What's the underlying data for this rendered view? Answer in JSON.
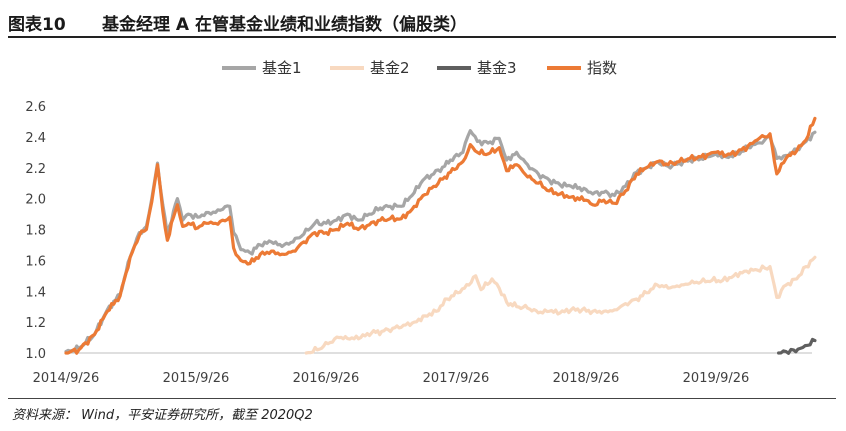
{
  "figure": {
    "number": "图表10",
    "title": "基金经理 A 在管基金业绩和业绩指数（偏股类）",
    "source": "资料来源： Wind，平安证券研究所，截至 2020Q2"
  },
  "chart_data": {
    "type": "line",
    "x_tick_labels": [
      "2014/9/26",
      "2015/9/26",
      "2016/9/26",
      "2017/9/26",
      "2018/9/26",
      "2019/9/26"
    ],
    "ylim": [
      1.0,
      2.6
    ],
    "y_ticks": [
      "1.0",
      "1.2",
      "1.4",
      "1.6",
      "1.8",
      "2.0",
      "2.2",
      "2.4",
      "2.6"
    ],
    "grid": false,
    "legend_position": "top-center",
    "series": [
      {
        "name": "基金1",
        "color": "#a6a6a6",
        "points": [
          [
            "2014-09-26",
            1.01
          ],
          [
            "2014-11-01",
            1.03
          ],
          [
            "2014-12-15",
            1.12
          ],
          [
            "2015-01-20",
            1.28
          ],
          [
            "2015-02-25",
            1.38
          ],
          [
            "2015-03-25",
            1.62
          ],
          [
            "2015-04-20",
            1.78
          ],
          [
            "2015-05-10",
            1.82
          ],
          [
            "2015-05-25",
            2.0
          ],
          [
            "2015-06-10",
            2.23
          ],
          [
            "2015-06-25",
            1.96
          ],
          [
            "2015-07-08",
            1.76
          ],
          [
            "2015-07-25",
            1.92
          ],
          [
            "2015-08-05",
            2.0
          ],
          [
            "2015-08-20",
            1.86
          ],
          [
            "2015-09-05",
            1.9
          ],
          [
            "2015-10-01",
            1.88
          ],
          [
            "2015-10-25",
            1.91
          ],
          [
            "2015-11-20",
            1.91
          ],
          [
            "2015-12-10",
            1.93
          ],
          [
            "2015-12-30",
            1.95
          ],
          [
            "2016-01-10",
            1.78
          ],
          [
            "2016-01-30",
            1.67
          ],
          [
            "2016-02-25",
            1.65
          ],
          [
            "2016-03-25",
            1.7
          ],
          [
            "2016-04-25",
            1.72
          ],
          [
            "2016-05-25",
            1.69
          ],
          [
            "2016-06-25",
            1.72
          ],
          [
            "2016-07-25",
            1.77
          ],
          [
            "2016-08-25",
            1.84
          ],
          [
            "2016-09-26",
            1.84
          ],
          [
            "2016-10-25",
            1.86
          ],
          [
            "2016-11-25",
            1.9
          ],
          [
            "2016-12-25",
            1.86
          ],
          [
            "2017-01-25",
            1.9
          ],
          [
            "2017-02-25",
            1.94
          ],
          [
            "2017-03-25",
            1.95
          ],
          [
            "2017-04-25",
            1.95
          ],
          [
            "2017-05-25",
            2.02
          ],
          [
            "2017-06-25",
            2.12
          ],
          [
            "2017-07-25",
            2.16
          ],
          [
            "2017-08-25",
            2.21
          ],
          [
            "2017-09-10",
            2.25
          ],
          [
            "2017-10-15",
            2.3
          ],
          [
            "2017-11-05",
            2.44
          ],
          [
            "2017-11-25",
            2.37
          ],
          [
            "2017-12-25",
            2.36
          ],
          [
            "2018-01-25",
            2.39
          ],
          [
            "2018-02-15",
            2.25
          ],
          [
            "2018-03-15",
            2.3
          ],
          [
            "2018-04-15",
            2.22
          ],
          [
            "2018-05-15",
            2.16
          ],
          [
            "2018-06-15",
            2.12
          ],
          [
            "2018-07-15",
            2.09
          ],
          [
            "2018-08-15",
            2.08
          ],
          [
            "2018-09-26",
            2.06
          ],
          [
            "2018-10-15",
            2.03
          ],
          [
            "2018-11-15",
            2.04
          ],
          [
            "2018-12-15",
            2.02
          ],
          [
            "2019-01-15",
            2.08
          ],
          [
            "2019-02-15",
            2.17
          ],
          [
            "2019-03-15",
            2.2
          ],
          [
            "2019-04-15",
            2.24
          ],
          [
            "2019-05-15",
            2.21
          ],
          [
            "2019-06-15",
            2.23
          ],
          [
            "2019-07-15",
            2.25
          ],
          [
            "2019-08-15",
            2.26
          ],
          [
            "2019-09-26",
            2.29
          ],
          [
            "2019-10-25",
            2.27
          ],
          [
            "2019-11-25",
            2.29
          ],
          [
            "2019-12-25",
            2.33
          ],
          [
            "2020-01-20",
            2.36
          ],
          [
            "2020-02-10",
            2.38
          ],
          [
            "2020-02-25",
            2.4
          ],
          [
            "2020-03-15",
            2.26
          ],
          [
            "2020-04-10",
            2.28
          ],
          [
            "2020-05-10",
            2.32
          ],
          [
            "2020-06-05",
            2.37
          ],
          [
            "2020-06-30",
            2.43
          ]
        ]
      },
      {
        "name": "基金2",
        "color": "#f8d9c0",
        "points": [
          [
            "2016-08-01",
            1.0
          ],
          [
            "2016-09-01",
            1.02
          ],
          [
            "2016-10-01",
            1.06
          ],
          [
            "2016-11-01",
            1.1
          ],
          [
            "2016-12-01",
            1.09
          ],
          [
            "2017-01-01",
            1.1
          ],
          [
            "2017-02-01",
            1.13
          ],
          [
            "2017-03-01",
            1.14
          ],
          [
            "2017-04-01",
            1.16
          ],
          [
            "2017-05-01",
            1.18
          ],
          [
            "2017-06-01",
            1.2
          ],
          [
            "2017-07-01",
            1.24
          ],
          [
            "2017-08-01",
            1.27
          ],
          [
            "2017-09-01",
            1.35
          ],
          [
            "2017-10-01",
            1.39
          ],
          [
            "2017-11-01",
            1.44
          ],
          [
            "2017-11-20",
            1.5
          ],
          [
            "2017-12-05",
            1.41
          ],
          [
            "2018-01-05",
            1.48
          ],
          [
            "2018-01-25",
            1.42
          ],
          [
            "2018-02-15",
            1.33
          ],
          [
            "2018-03-15",
            1.3
          ],
          [
            "2018-04-15",
            1.29
          ],
          [
            "2018-05-15",
            1.26
          ],
          [
            "2018-06-15",
            1.27
          ],
          [
            "2018-07-15",
            1.26
          ],
          [
            "2018-08-15",
            1.28
          ],
          [
            "2018-09-15",
            1.28
          ],
          [
            "2018-10-15",
            1.27
          ],
          [
            "2018-11-15",
            1.27
          ],
          [
            "2018-12-15",
            1.28
          ],
          [
            "2019-01-15",
            1.32
          ],
          [
            "2019-02-15",
            1.35
          ],
          [
            "2019-03-15",
            1.39
          ],
          [
            "2019-04-15",
            1.44
          ],
          [
            "2019-05-15",
            1.42
          ],
          [
            "2019-06-15",
            1.43
          ],
          [
            "2019-07-15",
            1.45
          ],
          [
            "2019-08-15",
            1.46
          ],
          [
            "2019-09-15",
            1.47
          ],
          [
            "2019-10-15",
            1.47
          ],
          [
            "2019-11-15",
            1.5
          ],
          [
            "2019-12-15",
            1.53
          ],
          [
            "2020-01-15",
            1.54
          ],
          [
            "2020-02-10",
            1.55
          ],
          [
            "2020-02-25",
            1.56
          ],
          [
            "2020-03-15",
            1.36
          ],
          [
            "2020-04-10",
            1.44
          ],
          [
            "2020-05-10",
            1.48
          ],
          [
            "2020-06-05",
            1.56
          ],
          [
            "2020-06-30",
            1.62
          ]
        ]
      },
      {
        "name": "基金3",
        "color": "#5f5f5f",
        "points": [
          [
            "2020-03-20",
            1.0
          ],
          [
            "2020-04-10",
            1.01
          ],
          [
            "2020-05-01",
            1.02
          ],
          [
            "2020-05-20",
            1.03
          ],
          [
            "2020-06-10",
            1.05
          ],
          [
            "2020-06-30",
            1.08
          ]
        ]
      },
      {
        "name": "指数",
        "color": "#ec7a35",
        "points": [
          [
            "2014-09-26",
            1.0
          ],
          [
            "2014-11-01",
            1.02
          ],
          [
            "2014-12-15",
            1.12
          ],
          [
            "2015-01-20",
            1.27
          ],
          [
            "2015-02-25",
            1.37
          ],
          [
            "2015-03-25",
            1.62
          ],
          [
            "2015-04-20",
            1.76
          ],
          [
            "2015-05-10",
            1.8
          ],
          [
            "2015-05-25",
            1.98
          ],
          [
            "2015-06-10",
            2.22
          ],
          [
            "2015-06-25",
            1.92
          ],
          [
            "2015-07-08",
            1.73
          ],
          [
            "2015-07-25",
            1.88
          ],
          [
            "2015-08-05",
            1.96
          ],
          [
            "2015-08-20",
            1.82
          ],
          [
            "2015-09-05",
            1.84
          ],
          [
            "2015-10-01",
            1.81
          ],
          [
            "2015-10-25",
            1.84
          ],
          [
            "2015-11-20",
            1.84
          ],
          [
            "2015-12-10",
            1.86
          ],
          [
            "2015-12-30",
            1.88
          ],
          [
            "2016-01-10",
            1.68
          ],
          [
            "2016-01-30",
            1.6
          ],
          [
            "2016-02-25",
            1.58
          ],
          [
            "2016-03-25",
            1.64
          ],
          [
            "2016-04-25",
            1.66
          ],
          [
            "2016-05-25",
            1.64
          ],
          [
            "2016-06-25",
            1.66
          ],
          [
            "2016-07-25",
            1.72
          ],
          [
            "2016-08-25",
            1.78
          ],
          [
            "2016-09-26",
            1.78
          ],
          [
            "2016-10-25",
            1.8
          ],
          [
            "2016-11-25",
            1.84
          ],
          [
            "2016-12-25",
            1.8
          ],
          [
            "2017-01-25",
            1.83
          ],
          [
            "2017-02-25",
            1.86
          ],
          [
            "2017-03-25",
            1.87
          ],
          [
            "2017-04-25",
            1.87
          ],
          [
            "2017-05-25",
            1.93
          ],
          [
            "2017-06-25",
            2.02
          ],
          [
            "2017-07-25",
            2.08
          ],
          [
            "2017-08-25",
            2.14
          ],
          [
            "2017-09-10",
            2.17
          ],
          [
            "2017-10-15",
            2.24
          ],
          [
            "2017-11-05",
            2.35
          ],
          [
            "2017-11-25",
            2.3
          ],
          [
            "2017-12-25",
            2.29
          ],
          [
            "2018-01-25",
            2.33
          ],
          [
            "2018-02-15",
            2.18
          ],
          [
            "2018-03-15",
            2.22
          ],
          [
            "2018-04-15",
            2.14
          ],
          [
            "2018-05-15",
            2.1
          ],
          [
            "2018-06-15",
            2.05
          ],
          [
            "2018-07-15",
            2.03
          ],
          [
            "2018-08-15",
            2.01
          ],
          [
            "2018-09-26",
            1.99
          ],
          [
            "2018-10-15",
            1.96
          ],
          [
            "2018-11-15",
            1.99
          ],
          [
            "2018-12-15",
            1.97
          ],
          [
            "2019-01-15",
            2.05
          ],
          [
            "2019-02-15",
            2.16
          ],
          [
            "2019-03-15",
            2.2
          ],
          [
            "2019-04-15",
            2.24
          ],
          [
            "2019-05-15",
            2.22
          ],
          [
            "2019-06-15",
            2.24
          ],
          [
            "2019-07-15",
            2.26
          ],
          [
            "2019-08-15",
            2.27
          ],
          [
            "2019-09-26",
            2.3
          ],
          [
            "2019-10-25",
            2.28
          ],
          [
            "2019-11-25",
            2.3
          ],
          [
            "2019-12-25",
            2.34
          ],
          [
            "2020-01-20",
            2.38
          ],
          [
            "2020-02-10",
            2.4
          ],
          [
            "2020-02-25",
            2.42
          ],
          [
            "2020-03-15",
            2.16
          ],
          [
            "2020-04-10",
            2.26
          ],
          [
            "2020-05-10",
            2.31
          ],
          [
            "2020-06-05",
            2.38
          ],
          [
            "2020-06-30",
            2.52
          ]
        ]
      }
    ]
  }
}
